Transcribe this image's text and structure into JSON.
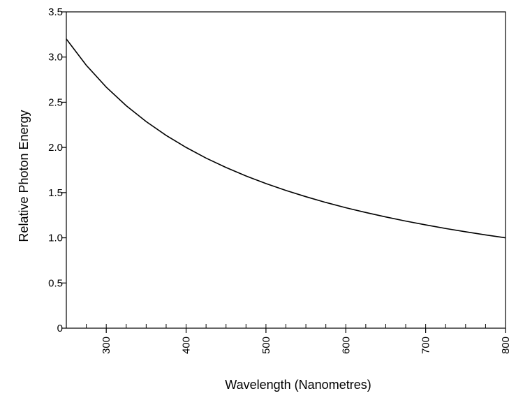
{
  "chart_data": {
    "type": "line",
    "title": "",
    "xlabel": "Wavelength (Nanometres)",
    "ylabel": "Relative Photon Energy",
    "xlim": [
      250,
      800
    ],
    "ylim": [
      0,
      3.5
    ],
    "x_ticks": [
      300,
      400,
      500,
      600,
      700,
      800
    ],
    "x_tick_labels": [
      "300",
      "400",
      "500",
      "600",
      "700",
      "800"
    ],
    "y_ticks": [
      0,
      0.5,
      1.0,
      1.5,
      2.0,
      2.5,
      3.0,
      3.5
    ],
    "y_tick_labels": [
      "0",
      "0.5",
      "1.0",
      "1.5",
      "2.0",
      "2.5",
      "3.0",
      "3.5"
    ],
    "x_minor_step": 25,
    "grid": false,
    "legend": "none",
    "series": [
      {
        "x": [
          250,
          275,
          300,
          325,
          350,
          375,
          400,
          425,
          450,
          475,
          500,
          525,
          550,
          575,
          600,
          625,
          650,
          675,
          700,
          725,
          750,
          775,
          800
        ],
        "y": [
          3.2,
          2.909,
          2.667,
          2.462,
          2.286,
          2.133,
          2.0,
          1.882,
          1.778,
          1.684,
          1.6,
          1.524,
          1.455,
          1.391,
          1.333,
          1.28,
          1.231,
          1.185,
          1.143,
          1.103,
          1.067,
          1.032,
          1.0
        ],
        "color": "#000000"
      }
    ]
  }
}
